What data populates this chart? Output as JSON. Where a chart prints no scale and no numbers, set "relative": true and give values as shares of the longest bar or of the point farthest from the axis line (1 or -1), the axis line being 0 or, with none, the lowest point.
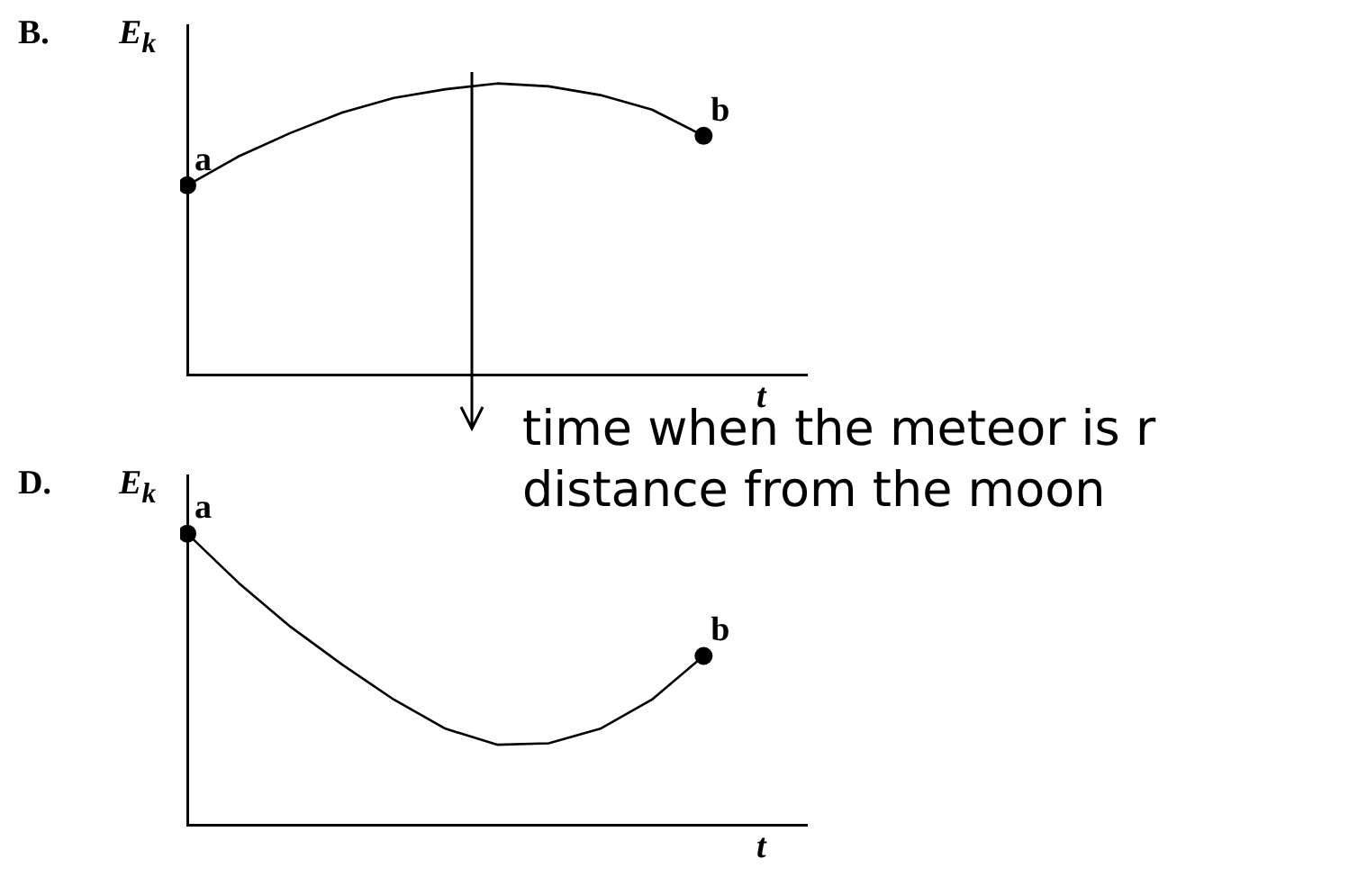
{
  "chart_data": [
    {
      "type": "line",
      "title": "B.",
      "ylabel": "E$_{k}$",
      "xlabel": "t",
      "relative": true,
      "grid": false,
      "legend": false,
      "tick_labels": false,
      "categories": [
        null,
        null,
        null,
        null,
        null,
        null,
        null,
        null,
        null,
        null,
        null,
        null,
        null
      ],
      "series": [
        {
          "color": "#000000",
          "values": [
            0.65,
            0.75,
            0.83,
            0.9,
            0.95,
            0.98,
            1,
            0.99,
            0.96,
            0.91,
            0.82,
            null,
            null
          ]
        }
      ],
      "annotations": [
        {
          "text": "a",
          "y": 0.65
        },
        {
          "text": "b",
          "y": 0.82
        },
        "time when the meteor is r distance from the moon"
      ]
    },
    {
      "type": "line",
      "title": "D.",
      "ylabel": "E$_{k}$",
      "xlabel": "t",
      "relative": true,
      "grid": false,
      "legend": false,
      "tick_labels": false,
      "categories": [
        null,
        null,
        null,
        null,
        null,
        null,
        null,
        null,
        null,
        null,
        null,
        null,
        null
      ],
      "series": [
        {
          "color": "#000000",
          "values": [
            1,
            0.83,
            0.68,
            0.55,
            0.43,
            0.33,
            0.275,
            0.28,
            0.33,
            0.43,
            0.58,
            null,
            null
          ]
        }
      ],
      "annotations": [
        {
          "text": "a",
          "y": 1
        },
        {
          "text": "b",
          "y": 0.58
        }
      ]
    }
  ]
}
